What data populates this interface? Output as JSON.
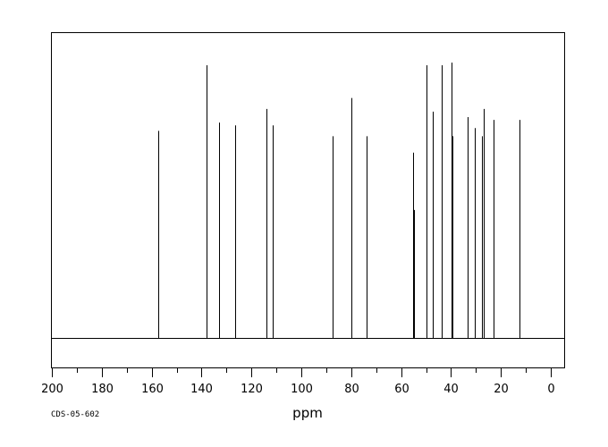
{
  "chart_data": {
    "type": "line",
    "title": "",
    "xlabel": "ppm",
    "ylabel": "",
    "xlim": [
      200,
      -5
    ],
    "x_reversed": true,
    "grid": false,
    "legend": "none",
    "x_ticks": [
      200,
      180,
      160,
      140,
      120,
      100,
      80,
      60,
      40,
      20,
      0
    ],
    "peaks": [
      {
        "ppm": 157.5,
        "intensity": 0.76
      },
      {
        "ppm": 138.0,
        "intensity": 1.0
      },
      {
        "ppm": 132.8,
        "intensity": 0.79
      },
      {
        "ppm": 126.7,
        "intensity": 0.78
      },
      {
        "ppm": 113.9,
        "intensity": 0.84
      },
      {
        "ppm": 111.6,
        "intensity": 0.78
      },
      {
        "ppm": 87.4,
        "intensity": 0.74
      },
      {
        "ppm": 79.8,
        "intensity": 0.88
      },
      {
        "ppm": 74.0,
        "intensity": 0.74
      },
      {
        "ppm": 55.1,
        "intensity": 0.68
      },
      {
        "ppm": 54.9,
        "intensity": 0.47
      },
      {
        "ppm": 49.9,
        "intensity": 1.0
      },
      {
        "ppm": 47.4,
        "intensity": 0.83
      },
      {
        "ppm": 43.8,
        "intensity": 1.0
      },
      {
        "ppm": 39.8,
        "intensity": 1.01
      },
      {
        "ppm": 39.3,
        "intensity": 0.74
      },
      {
        "ppm": 33.3,
        "intensity": 0.81
      },
      {
        "ppm": 30.4,
        "intensity": 0.77
      },
      {
        "ppm": 27.5,
        "intensity": 0.74
      },
      {
        "ppm": 27.0,
        "intensity": 0.84
      },
      {
        "ppm": 23.0,
        "intensity": 0.8
      },
      {
        "ppm": 12.6,
        "intensity": 0.8
      }
    ]
  },
  "footer": {
    "code": "CDS-05-602"
  }
}
